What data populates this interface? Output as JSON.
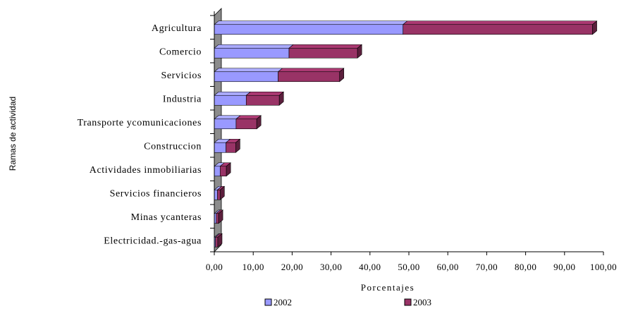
{
  "chart_data": {
    "type": "bar",
    "orientation": "horizontal",
    "stacked": true,
    "three_d": true,
    "categories": [
      "Agricultura",
      "Comercio",
      "Servicios",
      "Industria",
      "Transporte ycomunicaciones",
      "Construccion",
      "Actividades inmobiliarias",
      "Servicios financieros",
      "Minas ycanteras",
      "Electricidad.-gas-agua"
    ],
    "series": [
      {
        "name": "2002",
        "color": "#9999ff",
        "values": [
          48.5,
          19.2,
          16.4,
          8.2,
          5.6,
          3.0,
          1.5,
          0.8,
          0.5,
          0.3
        ]
      },
      {
        "name": "2003",
        "color": "#993366",
        "values": [
          48.7,
          17.6,
          15.8,
          8.5,
          5.3,
          2.5,
          1.6,
          0.7,
          0.6,
          0.6
        ]
      }
    ],
    "xlabel": "Porcentajes",
    "ylabel": "Ramas de actividad",
    "xlim": [
      0,
      100
    ],
    "xticks": [
      "0,00",
      "10,00",
      "20,00",
      "30,00",
      "40,00",
      "50,00",
      "60,00",
      "70,00",
      "80,00",
      "90,00",
      "100,00"
    ],
    "legend_position": "bottom",
    "grid": false
  }
}
